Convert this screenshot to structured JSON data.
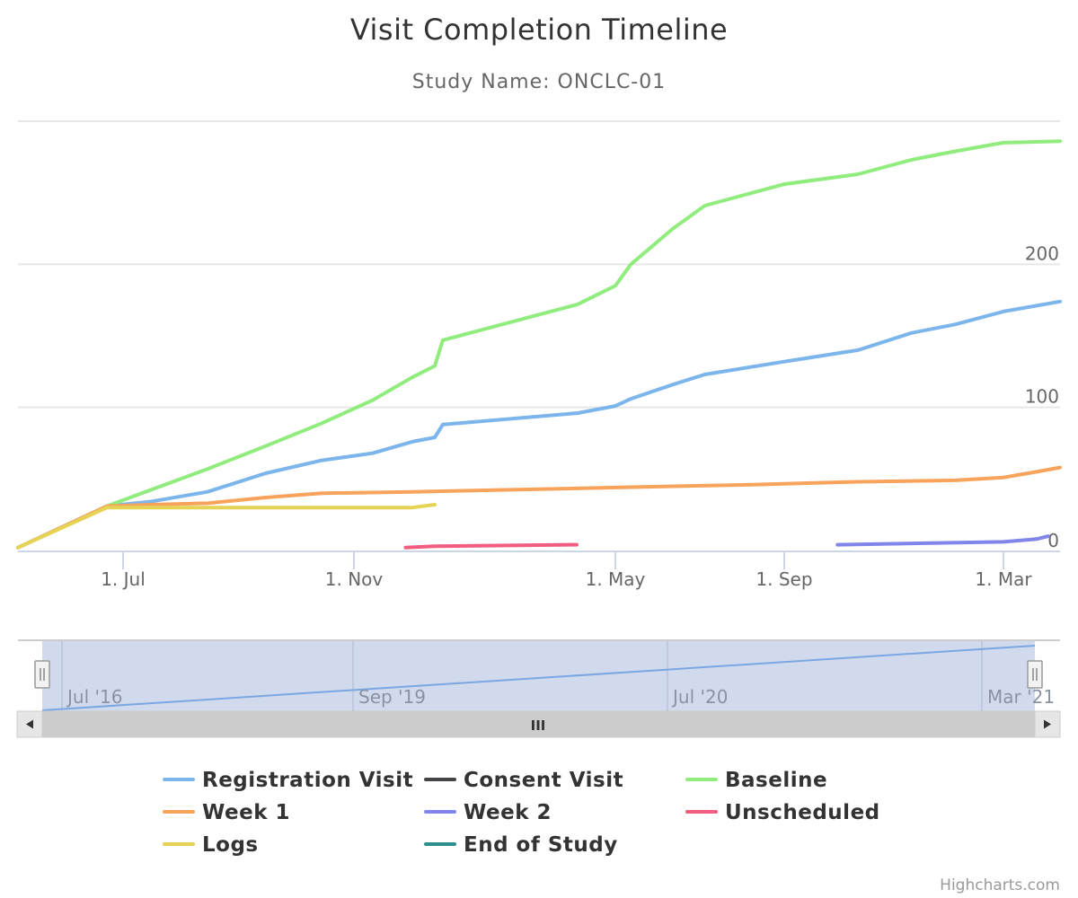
{
  "chart_data": {
    "type": "line",
    "title": "Visit Completion Timeline",
    "subtitle": "Study Name: ONCLC-01",
    "xlabel": "",
    "ylabel": "",
    "xlim": [
      "2016-04-20",
      "2021-03-25"
    ],
    "ylim": [
      0,
      300
    ],
    "y_ticks": [
      0,
      100,
      200
    ],
    "y_tick_labels": [
      "0",
      "100",
      "200"
    ],
    "x_ticks": [
      "2016-07-01",
      "2016-11-01",
      "2019-05-01",
      "2020-09-01",
      "2021-03-01"
    ],
    "x_tick_labels": [
      "1. Jul",
      "1. Nov",
      "1. May",
      "1. Sep",
      "1. Mar"
    ],
    "grid": true,
    "legend_position": "bottom",
    "series": [
      {
        "name": "Registration Visit",
        "color": "#7cb5ec",
        "points": [
          [
            "2016-04-20",
            2
          ],
          [
            "2016-06-20",
            31
          ],
          [
            "2016-07-15",
            34
          ],
          [
            "2016-08-15",
            41
          ],
          [
            "2016-09-15",
            54
          ],
          [
            "2016-10-15",
            63
          ],
          [
            "2016-11-15",
            68
          ],
          [
            "2016-12-15",
            76
          ],
          [
            "2017-01-01",
            79
          ],
          [
            "2017-02-15",
            88
          ],
          [
            "2019-03-15",
            96
          ],
          [
            "2019-05-01",
            101
          ],
          [
            "2019-06-15",
            106
          ],
          [
            "2019-10-15",
            116
          ],
          [
            "2020-01-15",
            123
          ],
          [
            "2020-09-01",
            132
          ],
          [
            "2020-11-01",
            140
          ],
          [
            "2020-12-15",
            152
          ],
          [
            "2021-01-20",
            158
          ],
          [
            "2021-03-01",
            167
          ],
          [
            "2021-03-25",
            174
          ]
        ]
      },
      {
        "name": "Consent Visit",
        "color": "#434348",
        "points": []
      },
      {
        "name": "Baseline",
        "color": "#90ed7d",
        "points": [
          [
            "2016-04-20",
            2
          ],
          [
            "2016-06-20",
            31
          ],
          [
            "2016-07-15",
            42
          ],
          [
            "2016-08-15",
            57
          ],
          [
            "2016-09-15",
            73
          ],
          [
            "2016-10-15",
            89
          ],
          [
            "2016-11-15",
            105
          ],
          [
            "2016-12-15",
            121
          ],
          [
            "2017-01-01",
            129
          ],
          [
            "2017-02-15",
            147
          ],
          [
            "2019-03-15",
            172
          ],
          [
            "2019-05-01",
            185
          ],
          [
            "2019-06-15",
            200
          ],
          [
            "2019-10-15",
            225
          ],
          [
            "2020-01-15",
            241
          ],
          [
            "2020-09-01",
            256
          ],
          [
            "2020-11-01",
            263
          ],
          [
            "2020-12-15",
            273
          ],
          [
            "2021-01-20",
            279
          ],
          [
            "2021-03-01",
            285
          ],
          [
            "2021-03-25",
            286
          ]
        ]
      },
      {
        "name": "Week 1",
        "color": "#f7a35c",
        "points": [
          [
            "2016-04-20",
            2
          ],
          [
            "2016-06-20",
            31
          ],
          [
            "2016-07-15",
            32
          ],
          [
            "2016-08-15",
            33
          ],
          [
            "2016-09-15",
            37
          ],
          [
            "2016-10-15",
            40
          ],
          [
            "2016-12-15",
            41
          ],
          [
            "2019-05-01",
            44
          ],
          [
            "2020-06-01",
            46
          ],
          [
            "2020-11-01",
            48
          ],
          [
            "2021-01-20",
            49
          ],
          [
            "2021-03-01",
            51
          ],
          [
            "2021-03-15",
            55
          ],
          [
            "2021-03-25",
            58
          ]
        ]
      },
      {
        "name": "Week 2",
        "color": "#8085e9",
        "points": [
          [
            "2020-10-15",
            4
          ],
          [
            "2021-03-01",
            6
          ],
          [
            "2021-03-15",
            8
          ],
          [
            "2021-03-20",
            10
          ]
        ]
      },
      {
        "name": "Unscheduled",
        "color": "#f15c80",
        "points": [
          [
            "2016-12-10",
            2
          ],
          [
            "2017-01-01",
            3
          ],
          [
            "2019-03-10",
            4
          ]
        ]
      },
      {
        "name": "Logs",
        "color": "#e4d354",
        "points": [
          [
            "2016-04-20",
            2
          ],
          [
            "2016-06-20",
            30
          ],
          [
            "2016-12-15",
            30
          ],
          [
            "2017-01-01",
            32
          ]
        ]
      },
      {
        "name": "End of Study",
        "color": "#2b908f",
        "points": []
      }
    ]
  },
  "navigator": {
    "labels": [
      "Jul '16",
      "Sep '19",
      "Jul '20",
      "Mar '21"
    ],
    "scroll_grip": "III",
    "left_arrow": "◀",
    "right_arrow": "▶"
  },
  "credits": "Highcharts.com"
}
